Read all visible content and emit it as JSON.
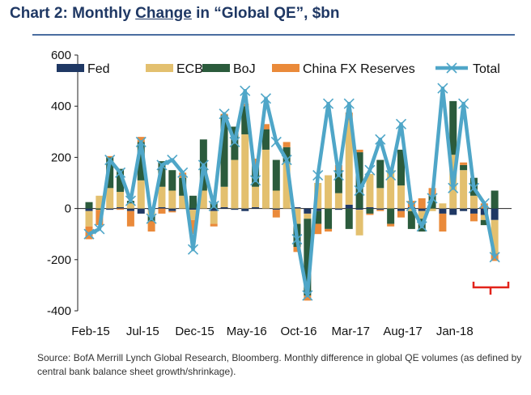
{
  "header": {
    "prefix": "Chart 2: Monthly ",
    "underlined": "Change",
    "suffix": " in “Global QE”, $bn"
  },
  "footer": {
    "source": "Source:  BofA Merrill Lynch Global Research, Bloomberg. Monthly  difference in global QE volumes (as defined by central bank balance sheet growth/shrinkage)."
  },
  "colors": {
    "fed": "#1f3864",
    "ecb": "#e3c06f",
    "boj": "#2b5b3c",
    "china": "#ea8a3a",
    "total": "#4fa6c8",
    "bracket": "#e2231a"
  },
  "chart_data": {
    "type": "bar",
    "stacked": true,
    "title": "Chart 2: Monthly Change in “Global QE”, $bn",
    "xlabel": "",
    "ylabel": "",
    "ylim": [
      -400,
      600
    ],
    "yticks": [
      -400,
      -200,
      0,
      200,
      400,
      600
    ],
    "x_tick_labels": [
      "Feb-15",
      "Jul-15",
      "Dec-15",
      "May-16",
      "Oct-16",
      "Mar-17",
      "Aug-17",
      "Jan-18"
    ],
    "x_tick_indices": [
      0,
      5,
      10,
      15,
      20,
      25,
      30,
      35
    ],
    "legend": [
      "Fed",
      "ECB",
      "BoJ",
      "China FX Reserves",
      "Total"
    ],
    "legend_position": "top",
    "categories": [
      "Feb-15",
      "Mar-15",
      "Apr-15",
      "May-15",
      "Jun-15",
      "Jul-15",
      "Aug-15",
      "Sep-15",
      "Oct-15",
      "Nov-15",
      "Dec-15",
      "Jan-16",
      "Feb-16",
      "Mar-16",
      "Apr-16",
      "May-16",
      "Jun-16",
      "Jul-16",
      "Aug-16",
      "Sep-16",
      "Oct-16",
      "Nov-16",
      "Dec-16",
      "Jan-17",
      "Feb-17",
      "Mar-17",
      "Apr-17",
      "May-17",
      "Jun-17",
      "Jul-17",
      "Aug-17",
      "Sep-17",
      "Oct-17",
      "Nov-17",
      "Dec-17",
      "Jan-18",
      "Feb-18",
      "Mar-18",
      "Apr-18",
      "May-18"
    ],
    "series": [
      {
        "name": "Fed",
        "values": [
          -10,
          0,
          -5,
          5,
          -10,
          -20,
          -5,
          5,
          -10,
          0,
          -5,
          0,
          -10,
          5,
          -5,
          -10,
          5,
          0,
          -5,
          0,
          5,
          -20,
          -10,
          0,
          -5,
          15,
          -5,
          5,
          -5,
          0,
          -10,
          5,
          -10,
          0,
          -20,
          -25,
          -10,
          -20,
          -25,
          -45
        ]
      },
      {
        "name": "ECB",
        "values": [
          -60,
          50,
          80,
          60,
          20,
          110,
          -25,
          80,
          70,
          50,
          -40,
          70,
          -50,
          80,
          190,
          290,
          80,
          230,
          70,
          180,
          -60,
          -20,
          100,
          130,
          60,
          330,
          -100,
          130,
          80,
          150,
          90,
          -10,
          -30,
          -10,
          20,
          210,
          150,
          50,
          -20,
          -130
        ]
      },
      {
        "name": "BoJ",
        "values": [
          25,
          -5,
          120,
          90,
          10,
          150,
          -20,
          100,
          80,
          70,
          50,
          200,
          25,
          280,
          130,
          110,
          80,
          80,
          120,
          60,
          -90,
          -300,
          -50,
          -80,
          90,
          -80,
          220,
          -20,
          110,
          -60,
          140,
          -70,
          -50,
          50,
          0,
          210,
          20,
          70,
          -20,
          70
        ]
      },
      {
        "name": "China FX Reserves",
        "values": [
          -50,
          -60,
          5,
          -5,
          -60,
          20,
          -40,
          -20,
          -5,
          20,
          -55,
          0,
          -10,
          5,
          0,
          10,
          30,
          20,
          -30,
          20,
          -20,
          -20,
          -40,
          -10,
          20,
          30,
          10,
          -5,
          -5,
          -10,
          -25,
          25,
          40,
          30,
          -70,
          0,
          10,
          -30,
          20,
          -30
        ]
      },
      {
        "name": "Total",
        "values": [
          -100,
          -80,
          190,
          140,
          30,
          260,
          -40,
          170,
          190,
          140,
          -160,
          170,
          10,
          370,
          260,
          460,
          110,
          430,
          260,
          190,
          -120,
          -340,
          130,
          410,
          130,
          410,
          70,
          150,
          270,
          130,
          330,
          10,
          -70,
          40,
          470,
          80,
          410,
          80,
          20,
          -190
        ]
      }
    ],
    "annotations": [
      "red bracket highlighting the latest months"
    ]
  }
}
